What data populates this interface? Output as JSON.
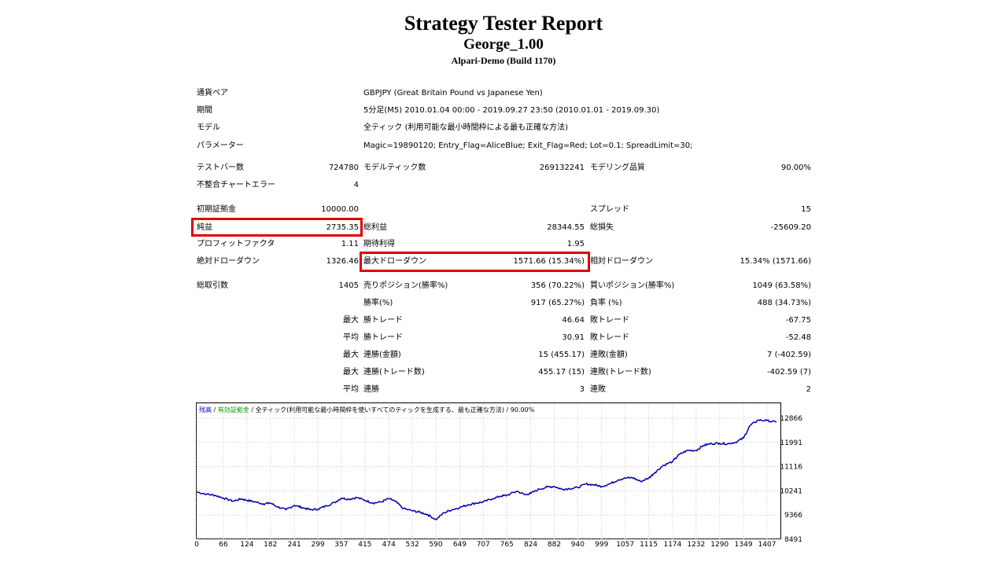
{
  "header": {
    "title": "Strategy Tester Report",
    "subtitle": "George_1.00",
    "server": "Alpari-Demo (Build 1170)"
  },
  "info": {
    "symbol_label": "通貨ペア",
    "symbol_value": "GBPJPY (Great Britain Pound vs Japanese Yen)",
    "period_label": "期間",
    "period_value": "5分足(M5) 2010.01.04 00:00 - 2019.09.27 23:50 (2010.01.01 - 2019.09.30)",
    "model_label": "モデル",
    "model_value": "全ティック (利用可能な最小時間枠による最も正確な方法)",
    "params_label": "パラメーター",
    "params_value": "Magic=19890120; Entry_Flag=AliceBlue; Exit_Flag=Red; Lot=0.1; SpreadLimit=30;"
  },
  "bars": {
    "bars_label": "テストバー数",
    "bars_value": "724780",
    "ticks_label": "モデルティック数",
    "ticks_value": "269132241",
    "quality_label": "モデリング品質",
    "quality_value": "90.00%",
    "errors_label": "不整合チャートエラー",
    "errors_value": "4"
  },
  "money": {
    "deposit_label": "初期証拠金",
    "deposit_value": "10000.00",
    "spread_label": "スプレッド",
    "spread_value": "15",
    "net_label": "純益",
    "net_value": "2735.35",
    "gross_profit_label": "総利益",
    "gross_profit_value": "28344.55",
    "gross_loss_label": "総損失",
    "gross_loss_value": "-25609.20",
    "pf_label": "プロフィットファクタ",
    "pf_value": "1.11",
    "exp_label": "期待利得",
    "exp_value": "1.95",
    "abs_dd_label": "絶対ドローダウン",
    "abs_dd_value": "1326.46",
    "max_dd_label": "最大ドローダウン",
    "max_dd_value": "1571.66 (15.34%)",
    "rel_dd_label": "相対ドローダウン",
    "rel_dd_value": "15.34% (1571.66)"
  },
  "trades": {
    "total_label": "総取引数",
    "total_value": "1405",
    "short_label": "売りポジション(勝率%)",
    "short_value": "356 (70.22%)",
    "long_label": "買いポジション(勝率%)",
    "long_value": "1049 (63.58%)",
    "win_label": "勝率(%)",
    "win_value": "917 (65.27%)",
    "loss_label": "負率 (%)",
    "loss_value": "488 (34.73%)",
    "max_label": "最大",
    "avg_label": "平均",
    "largest_win_label": "勝トレード",
    "largest_win_value": "46.64",
    "largest_loss_label": "敗トレード",
    "largest_loss_value": "-67.75",
    "avg_win_label": "勝トレード",
    "avg_win_value": "30.91",
    "avg_loss_label": "敗トレード",
    "avg_loss_value": "-52.48",
    "cons_wins_money_label": "連勝(金額)",
    "cons_wins_money_value": "15 (455.17)",
    "cons_losses_money_label": "連敗(金額)",
    "cons_losses_money_value": "7 (-402.59)",
    "cons_profit_label": "連勝(トレード数)",
    "cons_profit_value": "455.17 (15)",
    "cons_loss_label": "連敗(トレード数)",
    "cons_loss_value": "-402.59 (7)",
    "avg_cons_wins_label": "連勝",
    "avg_cons_wins_value": "3",
    "avg_cons_losses_label": "連敗",
    "avg_cons_losses_value": "2"
  },
  "chart_legend": {
    "balance": "残高",
    "sep1": "/",
    "margin": "有効証拠金",
    "sep2": "/",
    "model": "全ティック(利用可能な最小時間枠を使いすべてのティックを生成する、最も正確な方法)",
    "sep3": "/",
    "quality": "90.00%",
    "balance_color": "#0000cc",
    "margin_color": "#009900"
  },
  "chart_data": {
    "type": "line",
    "title": "",
    "xlabel": "",
    "ylabel": "",
    "x_ticks": [
      0,
      66,
      124,
      182,
      241,
      299,
      357,
      415,
      474,
      532,
      590,
      649,
      707,
      765,
      824,
      882,
      940,
      999,
      1057,
      1115,
      1174,
      1232,
      1290,
      1349,
      1407
    ],
    "y_ticks": [
      12866,
      11991,
      11116,
      10241,
      9366,
      8491
    ],
    "xlim": [
      0,
      1440
    ],
    "ylim": [
      8491,
      12866
    ],
    "grid": true,
    "line_color": "#0000aa",
    "series": [
      {
        "x": [
          0,
          25,
          45,
          66,
          90,
          110,
          124,
          145,
          165,
          182,
          200,
          220,
          241,
          260,
          280,
          299,
          320,
          340,
          357,
          375,
          395,
          415,
          435,
          455,
          474,
          490,
          510,
          532,
          550,
          570,
          590,
          610,
          630,
          649,
          670,
          690,
          707,
          730,
          750,
          765,
          790,
          810,
          824,
          845,
          865,
          882,
          900,
          920,
          940,
          960,
          980,
          999,
          1020,
          1040,
          1057,
          1075,
          1095,
          1115,
          1130,
          1150,
          1174,
          1190,
          1210,
          1232,
          1250,
          1270,
          1290,
          1310,
          1330,
          1349,
          1365,
          1385,
          1407,
          1430
        ],
        "y": [
          10200,
          10120,
          10080,
          9980,
          9870,
          9950,
          9900,
          9840,
          9770,
          9800,
          9660,
          9560,
          9720,
          9640,
          9560,
          9580,
          9700,
          9820,
          9980,
          9940,
          10000,
          9900,
          9800,
          9840,
          9960,
          9860,
          9600,
          9520,
          9470,
          9380,
          9200,
          9450,
          9560,
          9640,
          9740,
          9800,
          9840,
          9960,
          10050,
          10080,
          10230,
          10100,
          10150,
          10300,
          10380,
          10400,
          10300,
          10320,
          10360,
          10490,
          10460,
          10400,
          10500,
          10640,
          10700,
          10720,
          10580,
          10700,
          10900,
          11150,
          11300,
          11550,
          11700,
          11700,
          11880,
          11950,
          11960,
          11940,
          12000,
          12150,
          12600,
          12800,
          12780,
          12720
        ]
      }
    ]
  }
}
